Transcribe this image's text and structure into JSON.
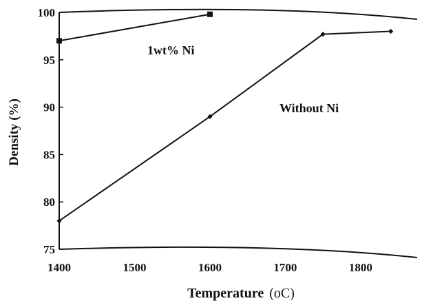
{
  "chart_data": {
    "type": "line",
    "title": "",
    "xlabel": "Temperature",
    "xlabel_unit": "(oC)",
    "ylabel": "Density (%)",
    "xlim": [
      1400,
      1875
    ],
    "ylim": [
      75,
      100
    ],
    "xticks": [
      "1400",
      "1500",
      "1600",
      "1700",
      "1800"
    ],
    "yticks": [
      "75",
      "80",
      "85",
      "90",
      "95",
      "100"
    ],
    "grid": false,
    "series": [
      {
        "name": "1wt% Ni",
        "marker": "square",
        "x": [
          1400,
          1600
        ],
        "y": [
          97,
          99.8
        ]
      },
      {
        "name": "Without Ni",
        "marker": "diamond",
        "x": [
          1400,
          1600,
          1750,
          1840
        ],
        "y": [
          78,
          89,
          97.7,
          98
        ]
      }
    ],
    "annotations": [
      "1wt% Ni",
      "Without Ni"
    ]
  }
}
